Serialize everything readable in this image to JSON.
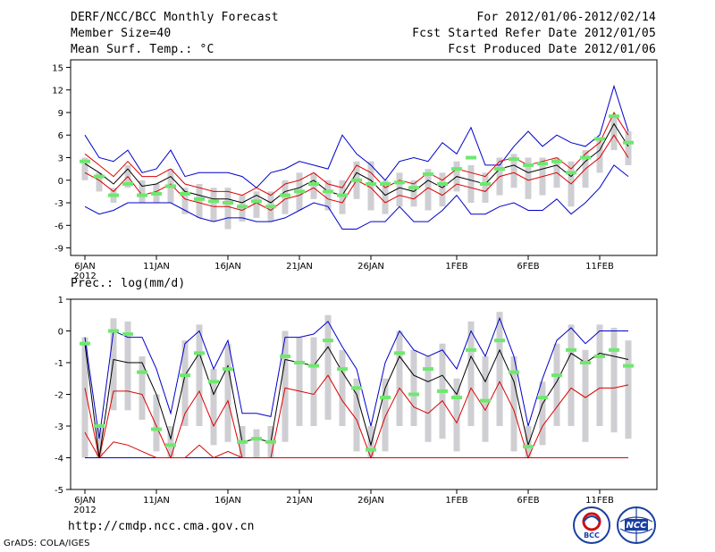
{
  "header": {
    "title": "DERF/NCC/BCC Monthly Forecast",
    "member_size": "Member Size=40",
    "variable_temp": "Mean Surf. Temp.: °C",
    "forecast_period": "For 2012/01/06-2012/02/14",
    "start_refer": "Fcst Started Refer Date 2012/01/05",
    "produced": "Fcst Produced Date 2012/01/06"
  },
  "footer": {
    "url": "http://cmdp.ncc.cma.gov.cn",
    "credit": "GrADS: COLA/IGES",
    "logo_bcc_text": "BCC",
    "logo_ncc_text": "NCC"
  },
  "colors": {
    "box": "#cfcfd3",
    "mean_marker": "#6ee86e",
    "ensemble_mean": "#000000",
    "upper_envelope": "#0000cc",
    "lower_envelope": "#0000cc",
    "inner_spread": "#dd0000"
  },
  "chart_data": [
    {
      "type": "box",
      "title": "Mean Surf. Temp.: °C",
      "x_tick_labels": [
        "6JAN",
        "11JAN",
        "16JAN",
        "21JAN",
        "26JAN",
        "1FEB",
        "6FEB",
        "11FEB"
      ],
      "year_label": "2012",
      "xlim": [
        1,
        40
      ],
      "x_tick_days": [
        1,
        6,
        11,
        16,
        21,
        27,
        32,
        37
      ],
      "ylim": [
        -10,
        16
      ],
      "y_ticks": [
        -9,
        -6,
        -3,
        0,
        3,
        6,
        9,
        12,
        15
      ],
      "series": [
        {
          "name": "ensemble mean",
          "values": [
            2.2,
            1.0,
            -0.5,
            1.5,
            -0.8,
            -0.5,
            0.5,
            -1.5,
            -2.0,
            -2.5,
            -2.5,
            -3.0,
            -2.0,
            -3.0,
            -1.5,
            -1.0,
            0.0,
            -1.5,
            -2.0,
            1.0,
            0.0,
            -2.0,
            -1.0,
            -1.5,
            0.0,
            -1.0,
            0.5,
            0.0,
            -0.5,
            1.5,
            2.0,
            1.0,
            1.5,
            2.0,
            0.5,
            2.5,
            4.0,
            7.5,
            4.5
          ]
        },
        {
          "name": "upper envelope",
          "values": [
            6.0,
            3.0,
            2.5,
            4.0,
            1.0,
            1.5,
            4.0,
            0.5,
            1.0,
            1.0,
            1.0,
            0.5,
            -1.0,
            1.0,
            1.5,
            2.5,
            2.0,
            1.5,
            6.0,
            3.5,
            2.0,
            0.0,
            2.5,
            3.0,
            2.5,
            5.0,
            3.5,
            7.0,
            2.0,
            2.0,
            4.5,
            6.5,
            4.5,
            6.0,
            5.0,
            4.5,
            6.0,
            12.5,
            6.5
          ]
        },
        {
          "name": "lower envelope",
          "values": [
            -3.5,
            -4.5,
            -4.0,
            -3.0,
            -3.0,
            -3.0,
            -3.0,
            -4.0,
            -5.0,
            -5.5,
            -5.0,
            -5.0,
            -5.5,
            -5.5,
            -5.0,
            -4.0,
            -3.0,
            -3.5,
            -6.5,
            -6.5,
            -5.5,
            -5.5,
            -3.5,
            -5.5,
            -5.5,
            -4.0,
            -2.0,
            -4.5,
            -4.5,
            -3.5,
            -3.0,
            -4.0,
            -4.0,
            -2.5,
            -4.5,
            -3.0,
            -1.0,
            2.0,
            0.5
          ]
        },
        {
          "name": "upper spread",
          "values": [
            3.5,
            2.0,
            0.5,
            2.5,
            0.5,
            0.5,
            1.5,
            -0.5,
            -1.0,
            -1.5,
            -1.5,
            -2.0,
            -1.0,
            -2.0,
            -0.5,
            0.0,
            1.0,
            -0.5,
            -1.0,
            2.0,
            1.0,
            -1.0,
            0.0,
            -0.5,
            1.0,
            0.0,
            1.5,
            1.0,
            0.5,
            2.5,
            3.0,
            2.0,
            2.5,
            3.0,
            1.5,
            3.5,
            5.0,
            9.0,
            6.0
          ]
        },
        {
          "name": "lower spread",
          "values": [
            1.0,
            0.0,
            -1.5,
            0.5,
            -2.0,
            -1.5,
            -0.5,
            -2.5,
            -3.0,
            -3.5,
            -3.5,
            -4.0,
            -3.0,
            -4.0,
            -2.5,
            -2.0,
            -1.0,
            -2.5,
            -3.0,
            0.0,
            -1.0,
            -3.0,
            -2.0,
            -2.5,
            -1.0,
            -2.0,
            -0.5,
            -1.0,
            -1.5,
            0.5,
            1.0,
            0.0,
            0.5,
            1.0,
            -0.5,
            1.5,
            3.0,
            6.0,
            3.0
          ]
        },
        {
          "name": "box top",
          "values": [
            3.0,
            1.0,
            -1.0,
            2.0,
            0.0,
            -0.5,
            1.5,
            -1.0,
            -0.5,
            -1.0,
            -1.0,
            -2.0,
            -1.5,
            -1.5,
            0.0,
            1.0,
            1.0,
            0.0,
            0.0,
            2.5,
            2.5,
            0.0,
            1.0,
            0.0,
            1.5,
            1.0,
            2.5,
            2.0,
            1.0,
            3.0,
            3.5,
            3.0,
            3.0,
            3.0,
            2.5,
            4.0,
            5.5,
            8.5,
            6.5
          ]
        },
        {
          "name": "box bottom",
          "values": [
            0.0,
            -1.5,
            -3.0,
            -1.0,
            -3.0,
            -3.0,
            -3.0,
            -4.5,
            -5.0,
            -5.5,
            -6.5,
            -5.5,
            -5.0,
            -5.5,
            -4.5,
            -4.0,
            -2.5,
            -4.0,
            -4.5,
            -2.5,
            -4.0,
            -4.5,
            -3.5,
            -3.5,
            -4.0,
            -3.5,
            -1.5,
            -3.0,
            -3.0,
            -2.0,
            -1.0,
            -2.5,
            -2.0,
            -1.0,
            -3.5,
            -1.0,
            1.0,
            4.0,
            2.0
          ]
        },
        {
          "name": "median marker",
          "values": [
            2.5,
            0.5,
            -2.0,
            -0.5,
            -2.0,
            -1.8,
            -0.8,
            -1.8,
            -2.5,
            -2.8,
            -3.0,
            -3.5,
            -2.8,
            -3.5,
            -2.0,
            -1.5,
            -0.5,
            -1.5,
            -2.0,
            0.0,
            -0.5,
            -0.5,
            -0.3,
            -1.0,
            0.8,
            -0.5,
            1.5,
            3.0,
            -0.5,
            1.5,
            2.8,
            2.0,
            2.2,
            2.5,
            1.0,
            3.0,
            5.5,
            8.5,
            5.0
          ]
        }
      ]
    },
    {
      "type": "box",
      "title": "Prec.: log(mm/d)",
      "x_tick_labels": [
        "6JAN",
        "11JAN",
        "16JAN",
        "21JAN",
        "26JAN",
        "1FEB",
        "6FEB",
        "11FEB"
      ],
      "year_label": "2012",
      "xlim": [
        1,
        40
      ],
      "x_tick_days": [
        1,
        6,
        11,
        16,
        21,
        27,
        32,
        37
      ],
      "ylim": [
        -5,
        1
      ],
      "y_ticks": [
        -5,
        -4,
        -3,
        -2,
        -1,
        0,
        1
      ],
      "series": [
        {
          "name": "ensemble mean",
          "values": [
            -0.4,
            -4.0,
            -0.9,
            -1.0,
            -1.0,
            -2.0,
            -3.4,
            -1.4,
            -0.7,
            -2.0,
            -1.1,
            -3.5,
            -3.4,
            -3.5,
            -0.9,
            -1.0,
            -1.1,
            -0.5,
            -1.3,
            -2.0,
            -3.6,
            -1.8,
            -0.8,
            -1.4,
            -1.6,
            -1.4,
            -2.0,
            -0.8,
            -1.6,
            -0.6,
            -1.6,
            -3.6,
            -2.3,
            -1.6,
            -0.7,
            -1.0,
            -0.7,
            -0.8,
            -0.9
          ]
        },
        {
          "name": "upper envelope",
          "values": [
            -0.2,
            -3.4,
            0.0,
            -0.2,
            -0.2,
            -1.2,
            -2.6,
            -0.4,
            0.0,
            -1.2,
            -0.3,
            -2.6,
            -2.6,
            -2.7,
            -0.2,
            -0.2,
            -0.1,
            0.3,
            -0.5,
            -1.2,
            -3.0,
            -1.0,
            0.0,
            -0.6,
            -0.8,
            -0.6,
            -1.2,
            0.0,
            -0.8,
            0.4,
            -0.8,
            -3.0,
            -1.5,
            -0.3,
            0.1,
            -0.4,
            0.0,
            0.0,
            0.0
          ]
        },
        {
          "name": "lower envelope",
          "values": [
            -4.0,
            -4.0,
            -4.0,
            -4.0,
            -4.0,
            -4.0,
            -4.0,
            -4.0,
            -4.0,
            -4.0,
            -4.0,
            -4.0,
            -4.0,
            -4.0,
            -4.0,
            -4.0,
            -4.0,
            -4.0,
            -4.0,
            -4.0,
            -4.0,
            -4.0,
            -4.0,
            -4.0,
            -4.0,
            -4.0,
            -4.0,
            -4.0,
            -4.0,
            -4.0,
            -4.0,
            -4.0,
            -4.0,
            -4.0,
            -4.0,
            -4.0,
            -4.0,
            -4.0,
            -4.0
          ]
        },
        {
          "name": "upper spread",
          "values": [
            -1.8,
            -4.0,
            -1.9,
            -1.9,
            -2.0,
            -3.0,
            -4.0,
            -2.6,
            -1.9,
            -3.0,
            -2.2,
            -4.0,
            -4.0,
            -4.0,
            -1.8,
            -1.9,
            -2.0,
            -1.4,
            -2.2,
            -2.8,
            -4.0,
            -2.7,
            -1.8,
            -2.4,
            -2.6,
            -2.2,
            -2.9,
            -1.8,
            -2.5,
            -1.6,
            -2.5,
            -4.0,
            -3.0,
            -2.4,
            -1.8,
            -2.1,
            -1.8,
            -1.8,
            -1.7
          ]
        },
        {
          "name": "lower spread",
          "values": [
            -3.2,
            -4.0,
            -3.5,
            -3.6,
            -3.8,
            -4.0,
            -4.0,
            -4.0,
            -3.6,
            -4.0,
            -3.8,
            -4.0,
            -4.0,
            -4.0,
            -4.0,
            -4.0,
            -4.0,
            -4.0,
            -4.0,
            -4.0,
            -4.0,
            -4.0,
            -4.0,
            -4.0,
            -4.0,
            -4.0,
            -4.0,
            -4.0,
            -4.0,
            -4.0,
            -4.0,
            -4.0,
            -4.0,
            -4.0,
            -4.0,
            -4.0,
            -4.0,
            -4.0,
            -4.0
          ]
        },
        {
          "name": "box top",
          "values": [
            -0.2,
            -3.0,
            0.4,
            0.3,
            -0.8,
            -2.0,
            -3.0,
            -0.3,
            0.2,
            -1.2,
            -0.4,
            -3.0,
            -3.1,
            -3.0,
            0.0,
            -0.2,
            -0.2,
            0.5,
            -0.6,
            -1.5,
            -3.0,
            -1.5,
            0.0,
            -0.6,
            -0.8,
            -0.4,
            -1.5,
            0.3,
            -0.8,
            0.6,
            -0.8,
            -3.0,
            -1.6,
            -0.4,
            0.2,
            -0.6,
            0.2,
            0.1,
            -0.3
          ]
        },
        {
          "name": "box bottom",
          "values": [
            -4.0,
            -4.0,
            -2.5,
            -2.5,
            -2.8,
            -3.8,
            -4.0,
            -3.0,
            -3.0,
            -3.6,
            -3.5,
            -4.0,
            -4.0,
            -4.0,
            -3.5,
            -3.0,
            -3.0,
            -2.8,
            -3.0,
            -3.8,
            -4.0,
            -3.8,
            -3.0,
            -3.0,
            -3.5,
            -3.4,
            -3.8,
            -3.0,
            -3.5,
            -3.0,
            -3.8,
            -4.0,
            -3.6,
            -3.0,
            -3.0,
            -3.5,
            -3.0,
            -3.2,
            -3.4
          ]
        },
        {
          "name": "median marker",
          "values": [
            -0.4,
            -3.0,
            0.0,
            -0.1,
            -1.3,
            -3.1,
            -3.6,
            -1.4,
            -0.7,
            -1.6,
            -1.2,
            -3.5,
            -3.4,
            -3.5,
            -0.8,
            -1.0,
            -1.1,
            -0.3,
            -1.2,
            -1.8,
            -3.75,
            -2.1,
            -0.7,
            -2.0,
            -1.2,
            -1.9,
            -2.1,
            -0.6,
            -2.2,
            -0.3,
            -1.3,
            -3.65,
            -2.1,
            -1.4,
            -0.6,
            -1.0,
            -0.8,
            -0.6,
            -1.1
          ]
        }
      ]
    }
  ]
}
